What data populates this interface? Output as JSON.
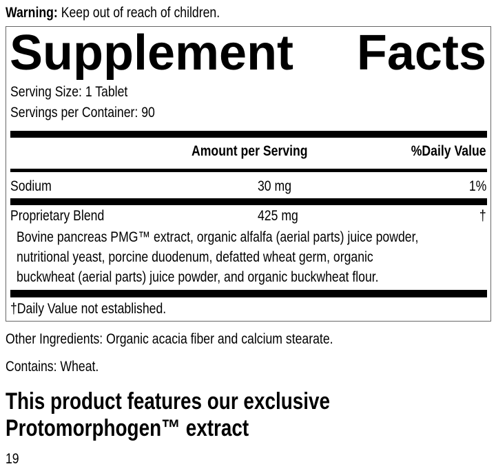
{
  "warning": {
    "label": "Warning:",
    "text": "Keep out of reach of children."
  },
  "facts": {
    "title_left": "Supplement",
    "title_right": "Facts",
    "serving_size": "Serving Size: 1 Tablet",
    "servings_per_container": "Servings per Container: 90",
    "header_amount": "Amount per Serving",
    "header_dv": "%Daily Value",
    "rows": [
      {
        "name": "Sodium",
        "amount": "30 mg",
        "dv": "1%"
      },
      {
        "name": "Proprietary Blend",
        "amount": "425 mg",
        "dv": "†"
      }
    ],
    "blend_lines": [
      "Bovine pancreas PMG™ extract, organic alfalfa (aerial parts) juice powder,",
      "nutritional yeast, porcine duodenum, defatted wheat germ, organic",
      "buckwheat (aerial parts) juice powder, and organic buckwheat flour."
    ],
    "footnote": "†Daily Value not established."
  },
  "other_ingredients": "Other Ingredients: Organic acacia fiber and calcium stearate.",
  "contains": "Contains: Wheat.",
  "headline_lines": [
    "This product features our exclusive",
    "Protomorphogen™ extract"
  ],
  "page_number": "19"
}
